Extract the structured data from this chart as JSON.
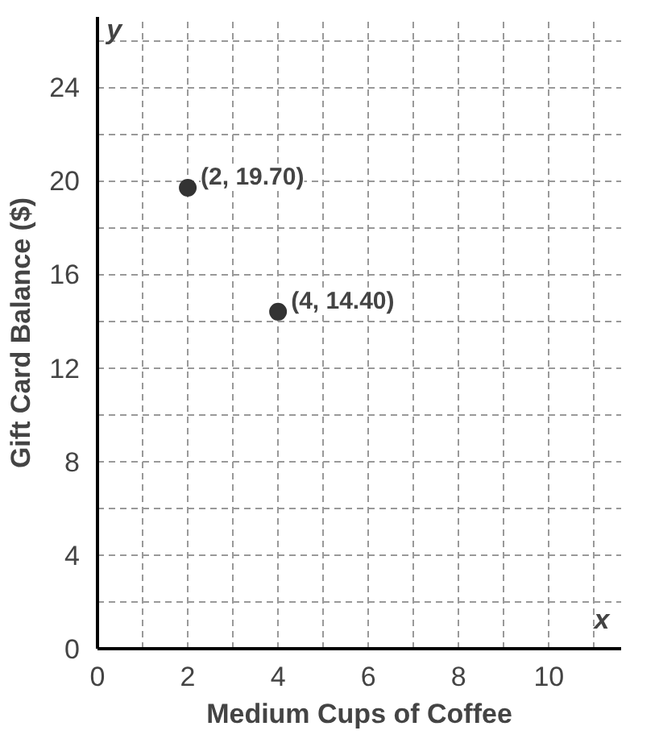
{
  "chart_data": {
    "type": "scatter",
    "xlabel": "Medium Cups of Coffee",
    "ylabel": "Gift Card Balance ($)",
    "x": [
      2,
      4
    ],
    "values": [
      19.7,
      14.4
    ],
    "color": "#333333",
    "marker": "circle",
    "xlim": [
      0,
      11.6
    ],
    "ylim": [
      0,
      27
    ],
    "xticks": [
      0,
      2,
      4,
      6,
      8,
      10
    ],
    "yticks": [
      0,
      4,
      8,
      12,
      16,
      20,
      24
    ],
    "grid": true,
    "annotations": [
      "y",
      "x",
      {
        "text": "(2, 19.70)",
        "x": 2,
        "y": 19.7
      },
      {
        "text": "(4, 14.40)",
        "x": 4,
        "y": 14.4
      }
    ]
  }
}
